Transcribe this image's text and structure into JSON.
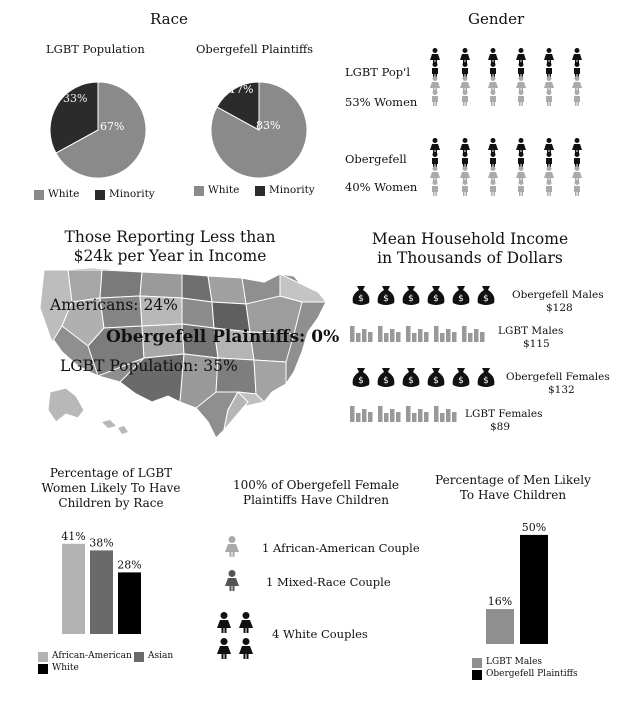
{
  "race": {
    "heading": "Race",
    "pies": [
      {
        "title": "LGBT Population",
        "white_pct": "67%",
        "minority_pct": "33%",
        "white": 67,
        "minority": 33
      },
      {
        "title": "Obergefell Plaintiffs",
        "white_pct": "83%",
        "minority_pct": "17%",
        "white": 83,
        "minority": 17
      }
    ],
    "legend": {
      "white": "White",
      "minority": "Minority"
    },
    "colors": {
      "white": "#8a8a8a",
      "minority": "#2b2b2b"
    }
  },
  "gender": {
    "heading": "Gender",
    "groups": [
      {
        "label": "LGBT Pop'l",
        "caption": "53% Women",
        "women_pct": 53
      },
      {
        "label": "Obergefell",
        "caption": "40% Women",
        "women_pct": 40
      }
    ]
  },
  "income_low": {
    "title_line1": "Those Reporting Less than",
    "title_line2": "$24k per Year in Income",
    "americans": "Americans: 24%",
    "plaintiffs": "Obergefell Plaintiffs: 0%",
    "lgbt": "LGBT Population: 35%"
  },
  "household": {
    "title_line1": "Mean Household Income",
    "title_line2": "in Thousands of Dollars",
    "rows": [
      {
        "label": "Obergefell Males",
        "value": "$128",
        "kind": "bags"
      },
      {
        "label": "LGBT Males",
        "value": "$115",
        "kind": "bars"
      },
      {
        "label": "Obergefell Females",
        "value": "$132",
        "kind": "bags"
      },
      {
        "label": "LGBT Females",
        "value": "$89",
        "kind": "bars"
      }
    ]
  },
  "children_race": {
    "title_line1": "Percentage of LGBT",
    "title_line2": "Women Likely To Have",
    "title_line3": "Children by Race",
    "legend": [
      "African-American",
      "Asian",
      "White"
    ]
  },
  "obergefell_children": {
    "title_line1": "100% of Obergefell Female",
    "title_line2": "Plaintiffs Have Children",
    "items": [
      "1 African-American Couple",
      "1 Mixed-Race Couple",
      "4 White Couples"
    ]
  },
  "men_children": {
    "title_line1": "Percentage of Men Likely",
    "title_line2": "To Have Children",
    "legend": [
      "LGBT Males",
      "Obergefell Plaintiffs"
    ]
  },
  "chart_data": [
    {
      "type": "pie",
      "title": "LGBT Population",
      "labels": [
        "White",
        "Minority"
      ],
      "values": [
        67,
        33
      ]
    },
    {
      "type": "pie",
      "title": "Obergefell Plaintiffs",
      "labels": [
        "White",
        "Minority"
      ],
      "values": [
        83,
        17
      ]
    },
    {
      "type": "bar",
      "categories": [
        "African-American",
        "Asian",
        "White"
      ],
      "values": [
        41,
        38,
        28
      ],
      "value_labels": [
        "41%",
        "38%",
        "28%"
      ],
      "colors": [
        "#b3b3b3",
        "#6a6a6a",
        "#000000"
      ],
      "ylim": [
        0,
        50
      ]
    },
    {
      "type": "bar",
      "categories": [
        "LGBT Males",
        "Obergefell Plaintiffs"
      ],
      "values": [
        16,
        50
      ],
      "value_labels": [
        "16%",
        "50%"
      ],
      "colors": [
        "#8f8f8f",
        "#000000"
      ],
      "ylim": [
        0,
        55
      ]
    }
  ]
}
